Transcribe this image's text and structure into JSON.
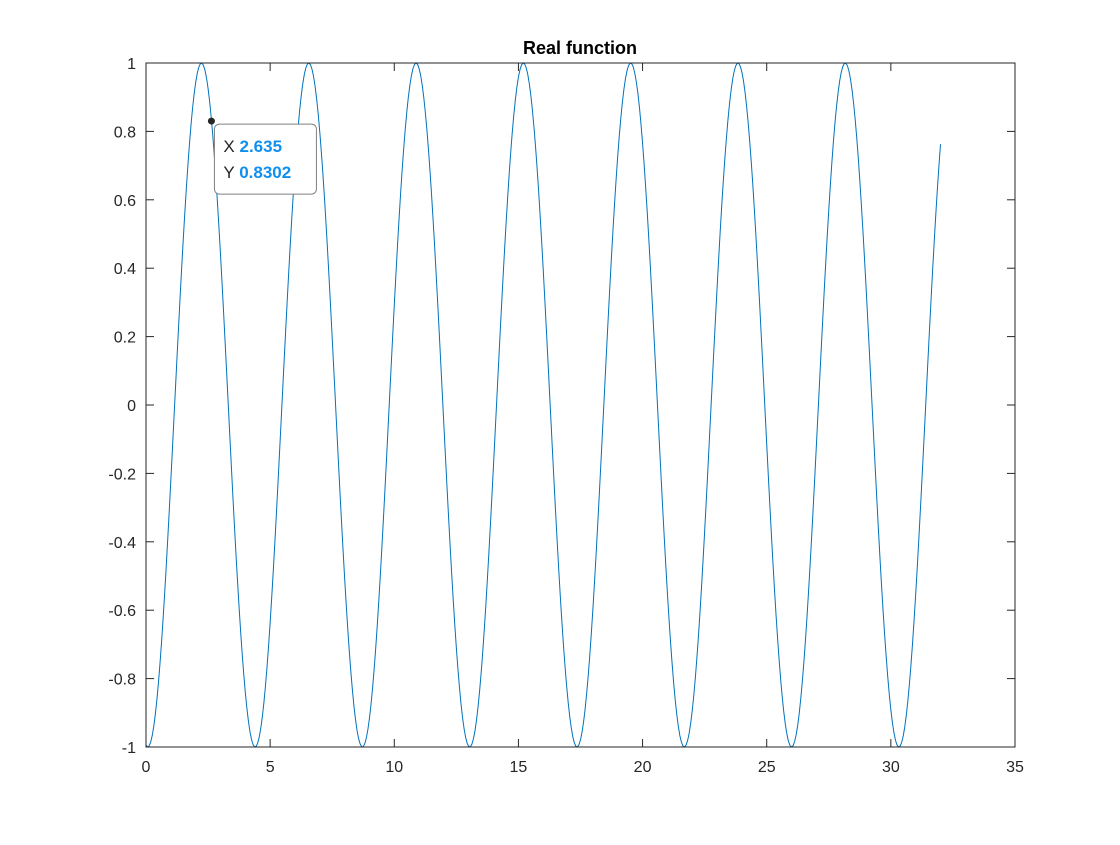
{
  "chart_data": {
    "type": "line",
    "title": "Real function",
    "xlabel": "",
    "ylabel": "",
    "xlim": [
      0,
      35
    ],
    "ylim": [
      -1,
      1
    ],
    "x_ticks": [
      0,
      5,
      10,
      15,
      20,
      25,
      30,
      35
    ],
    "y_ticks": [
      -1,
      -0.8,
      -0.6,
      -0.4,
      -0.2,
      0,
      0.2,
      0.4,
      0.6,
      0.8,
      1
    ],
    "grid": false,
    "line_color": "#0072BD",
    "series": [
      {
        "x_start": 0,
        "x_end": 32,
        "point_count": 513,
        "function": "cos(2*pi*f*x + phi), sampled",
        "frequency": 0.2314,
        "phase": -3.247,
        "values_range": [
          -1,
          1
        ]
      }
    ],
    "datatip": {
      "x_key": "X",
      "x_value": "2.635",
      "y_key": "Y",
      "y_value": "0.8302",
      "x": 2.635,
      "y": 0.8302,
      "value_color": "#0f8ff0"
    }
  }
}
